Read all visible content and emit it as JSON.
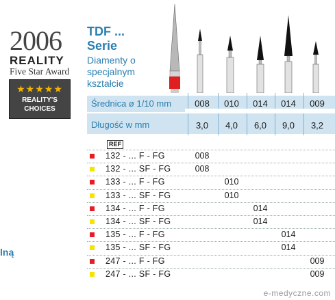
{
  "award": {
    "year": "2006",
    "brand": "REALITY",
    "subtitle": "Five Star Award",
    "stars": "★★★★★",
    "badge_text": "REALITY'S CHOICES"
  },
  "left_fragment": "lną",
  "title": "TDF ... Serie",
  "subtitle": "Diamenty o specjalnym kształcie",
  "table": {
    "diameter_label": "Średnica ø 1/10 mm",
    "length_label": "Długość w mm",
    "diameters": [
      "008",
      "010",
      "014",
      "014",
      "009"
    ],
    "lengths": [
      "3,0",
      "4,0",
      "6,0",
      "9,0",
      "3,2"
    ],
    "ref_label": "REF",
    "rows": [
      {
        "color": "#e41e26",
        "code": "132 - ... F - FG",
        "value": "008",
        "col": 0
      },
      {
        "color": "#f5e400",
        "code": "132 - ... SF - FG",
        "value": "008",
        "col": 0
      },
      {
        "color": "#e41e26",
        "code": "133 - ... F - FG",
        "value": "010",
        "col": 1
      },
      {
        "color": "#f5e400",
        "code": "133 - ... SF - FG",
        "value": "010",
        "col": 1
      },
      {
        "color": "#e41e26",
        "code": "134 - ... F - FG",
        "value": "014",
        "col": 2
      },
      {
        "color": "#f5e400",
        "code": "134 - ... SF - FG",
        "value": "014",
        "col": 2
      },
      {
        "color": "#e41e26",
        "code": "135 - ... F - FG",
        "value": "014",
        "col": 3
      },
      {
        "color": "#f5e400",
        "code": "135 - ... SF - FG",
        "value": "014",
        "col": 3
      },
      {
        "color": "#e41e26",
        "code": "247 - ... F - FG",
        "value": "009",
        "col": 4
      },
      {
        "color": "#f5e400",
        "code": "247 - ... SF - FG",
        "value": "009",
        "col": 4
      }
    ]
  },
  "watermark": "e-medyczne.com"
}
